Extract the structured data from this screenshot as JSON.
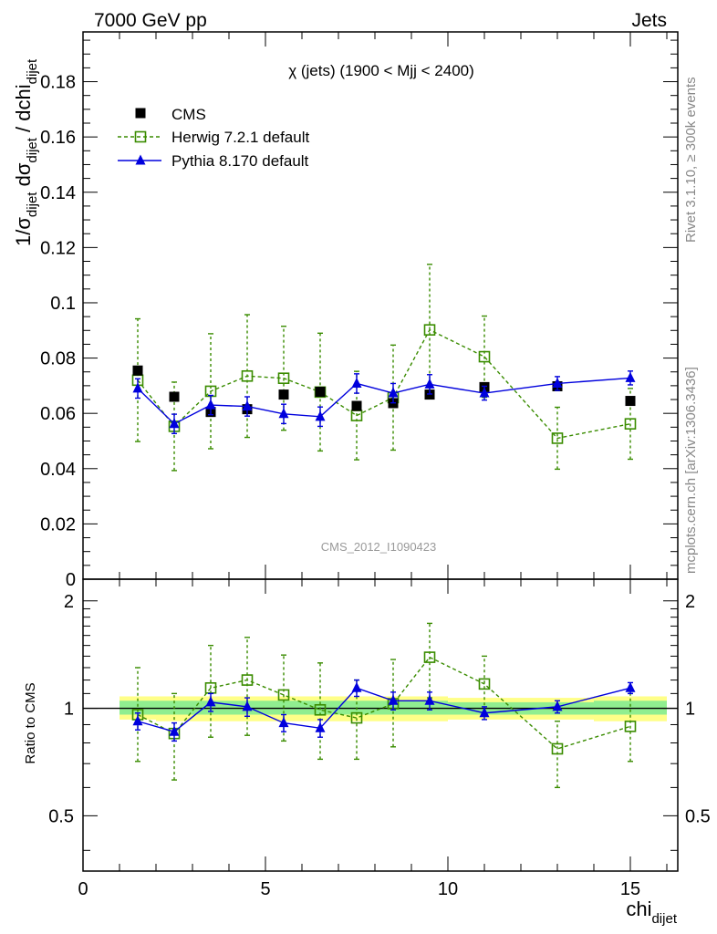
{
  "header": {
    "left": "7000 GeV pp",
    "right": "Jets"
  },
  "side_labels": {
    "rivet": "Rivet 3.1.10, ≥ 300k events",
    "mcplots": "mcplots.cern.ch [arXiv:1306.3436]"
  },
  "colors": {
    "cms": "#000000",
    "herwig": "#3a8c00",
    "pythia": "#0000dd",
    "band_inner": "#90ee90",
    "band_outer": "#ffff88"
  },
  "chart_data": [
    {
      "type": "scatter",
      "title": "χ (jets) (1900 < Mjj < 2400)",
      "watermark": "CMS_2012_I1090423",
      "ylabel": {
        "main": "1/σ",
        "sub1": "dijet",
        "mid": " dσ",
        "sub2": "dijet",
        "tail": " / dchi",
        "sub3": "dijet"
      },
      "xlim": [
        0,
        16.3
      ],
      "ylim": [
        0,
        0.198
      ],
      "yticks": [
        "0",
        "0.02",
        "0.04",
        "0.06",
        "0.08",
        "0.1",
        "0.12",
        "0.14",
        "0.16",
        "0.18"
      ],
      "ytick_values": [
        0,
        0.02,
        0.04,
        0.06,
        0.08,
        0.1,
        0.12,
        0.14,
        0.16,
        0.18
      ],
      "legend": [
        "CMS",
        "Herwig 7.2.1 default",
        "Pythia 8.170 default"
      ],
      "series": [
        {
          "name": "CMS",
          "x": [
            1.5,
            2.5,
            3.5,
            4.5,
            5.5,
            6.5,
            7.5,
            8.5,
            9.5,
            11,
            13,
            15
          ],
          "values": [
            0.0755,
            0.066,
            0.0605,
            0.0615,
            0.0668,
            0.0678,
            0.0627,
            0.0637,
            0.0668,
            0.0695,
            0.0698,
            0.0645
          ],
          "err": [
            0.0013,
            0.0013,
            0.0013,
            0.0013,
            0.0013,
            0.0013,
            0.0013,
            0.0013,
            0.0013,
            0.0013,
            0.0013,
            0.0013
          ]
        },
        {
          "name": "Herwig 7.2.1 default",
          "x": [
            1.5,
            2.5,
            3.5,
            4.5,
            5.5,
            6.5,
            7.5,
            8.5,
            9.5,
            11,
            13,
            15
          ],
          "values": [
            0.072,
            0.0553,
            0.068,
            0.0735,
            0.0727,
            0.0677,
            0.0592,
            0.0657,
            0.0902,
            0.0805,
            0.051,
            0.0562
          ],
          "err": [
            0.0222,
            0.016,
            0.0208,
            0.0222,
            0.0188,
            0.0213,
            0.016,
            0.019,
            0.0237,
            0.0147,
            0.0112,
            0.0128
          ]
        },
        {
          "name": "Pythia 8.170 default",
          "x": [
            1.5,
            2.5,
            3.5,
            4.5,
            5.5,
            6.5,
            7.5,
            8.5,
            9.5,
            11,
            13,
            15
          ],
          "values": [
            0.069,
            0.0562,
            0.063,
            0.0625,
            0.0598,
            0.0588,
            0.0708,
            0.0673,
            0.0705,
            0.0673,
            0.0708,
            0.0728
          ],
          "err": [
            0.0035,
            0.0035,
            0.0035,
            0.0035,
            0.0035,
            0.0035,
            0.0035,
            0.0035,
            0.0035,
            0.0025,
            0.0025,
            0.0025
          ]
        }
      ]
    },
    {
      "type": "scatter",
      "ylabel": "Ratio to CMS",
      "xlabel": {
        "main": "chi",
        "sub": "dijet"
      },
      "xlim": [
        0,
        16.3
      ],
      "xticks": [
        "0",
        "5",
        "10",
        "15"
      ],
      "xtick_values": [
        0,
        5,
        10,
        15
      ],
      "ylim": [
        0.35,
        2.3
      ],
      "log_y": true,
      "yticks": [
        "0.5",
        "1",
        "2"
      ],
      "ytick_values": [
        0.5,
        1,
        2
      ],
      "bands": [
        {
          "x": [
            1,
            2
          ],
          "inner": [
            0.96,
            1.05
          ],
          "outer": [
            0.93,
            1.08
          ]
        },
        {
          "x": [
            2,
            3
          ],
          "inner": [
            0.96,
            1.05
          ],
          "outer": [
            0.92,
            1.08
          ]
        },
        {
          "x": [
            3,
            4
          ],
          "inner": [
            0.96,
            1.05
          ],
          "outer": [
            0.92,
            1.08
          ]
        },
        {
          "x": [
            4,
            5
          ],
          "inner": [
            0.96,
            1.05
          ],
          "outer": [
            0.92,
            1.08
          ]
        },
        {
          "x": [
            5,
            6
          ],
          "inner": [
            0.96,
            1.05
          ],
          "outer": [
            0.92,
            1.08
          ]
        },
        {
          "x": [
            6,
            7
          ],
          "inner": [
            0.96,
            1.05
          ],
          "outer": [
            0.92,
            1.08
          ]
        },
        {
          "x": [
            7,
            8
          ],
          "inner": [
            0.96,
            1.05
          ],
          "outer": [
            0.92,
            1.08
          ]
        },
        {
          "x": [
            8,
            9
          ],
          "inner": [
            0.96,
            1.05
          ],
          "outer": [
            0.92,
            1.08
          ]
        },
        {
          "x": [
            9,
            10
          ],
          "inner": [
            0.96,
            1.05
          ],
          "outer": [
            0.92,
            1.08
          ]
        },
        {
          "x": [
            10,
            12
          ],
          "inner": [
            0.96,
            1.04
          ],
          "outer": [
            0.93,
            1.07
          ]
        },
        {
          "x": [
            12,
            14
          ],
          "inner": [
            0.96,
            1.04
          ],
          "outer": [
            0.93,
            1.07
          ]
        },
        {
          "x": [
            14,
            16
          ],
          "inner": [
            0.96,
            1.05
          ],
          "outer": [
            0.92,
            1.08
          ]
        }
      ],
      "series": [
        {
          "name": "Herwig 7.2.1 default",
          "x": [
            1.5,
            2.5,
            3.5,
            4.5,
            5.5,
            6.5,
            7.5,
            8.5,
            9.5,
            11,
            13,
            15
          ],
          "values": [
            0.96,
            0.85,
            1.14,
            1.2,
            1.09,
            0.99,
            0.94,
            1.03,
            1.39,
            1.17,
            0.77,
            0.89
          ],
          "lo": [
            0.71,
            0.63,
            0.83,
            0.84,
            0.81,
            0.72,
            0.72,
            0.78,
            1.07,
            0.95,
            0.6,
            0.71
          ],
          "hi": [
            1.3,
            1.1,
            1.5,
            1.58,
            1.41,
            1.34,
            1.2,
            1.37,
            1.73,
            1.4,
            0.92,
            1.1
          ]
        },
        {
          "name": "Pythia 8.170 default",
          "x": [
            1.5,
            2.5,
            3.5,
            4.5,
            5.5,
            6.5,
            7.5,
            8.5,
            9.5,
            11,
            13,
            15
          ],
          "values": [
            0.92,
            0.86,
            1.04,
            1.01,
            0.91,
            0.88,
            1.14,
            1.05,
            1.05,
            0.97,
            1.01,
            1.14
          ],
          "lo": [
            0.87,
            0.81,
            0.98,
            0.95,
            0.86,
            0.83,
            1.08,
            0.99,
            0.99,
            0.93,
            0.97,
            1.1
          ],
          "hi": [
            0.97,
            0.91,
            1.1,
            1.07,
            0.96,
            0.93,
            1.2,
            1.11,
            1.11,
            1.01,
            1.05,
            1.18
          ]
        }
      ]
    }
  ]
}
